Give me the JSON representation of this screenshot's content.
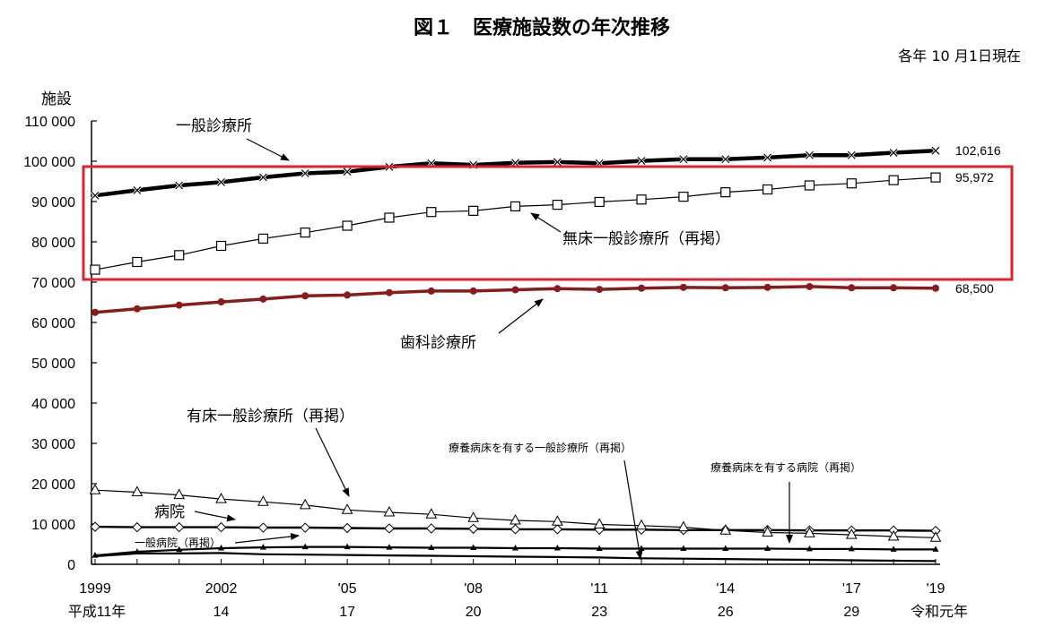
{
  "title": "図１　医療施設数の年次推移",
  "as_of": "各年 10 月1日現在",
  "colors": {
    "general_clinic": "#000000",
    "no_bed_clinic": "#000000",
    "dental_clinic": "#8b1a1a",
    "highlight_box": "#d9232e"
  },
  "chart_data": {
    "type": "line",
    "ylabel": "施設",
    "ylim": [
      0,
      110000
    ],
    "y_ticks": [
      "110 000",
      "100 000",
      "90 000",
      "80 000",
      "70 000",
      "60 000",
      "50 000",
      "40 000",
      "30 000",
      "20 000",
      "10 000",
      "0"
    ],
    "x": [
      1999,
      2000,
      2001,
      2002,
      2003,
      2004,
      2005,
      2006,
      2007,
      2008,
      2009,
      2010,
      2011,
      2012,
      2013,
      2014,
      2015,
      2016,
      2017,
      2018,
      2019
    ],
    "x_ticks": [
      {
        "year": 1999,
        "top": "1999",
        "bottom": "平成11年"
      },
      {
        "year": 2002,
        "top": "2002",
        "bottom": "14"
      },
      {
        "year": 2005,
        "top": "'05",
        "bottom": "17"
      },
      {
        "year": 2008,
        "top": "'08",
        "bottom": "20"
      },
      {
        "year": 2011,
        "top": "'11",
        "bottom": "23"
      },
      {
        "year": 2014,
        "top": "'14",
        "bottom": "26"
      },
      {
        "year": 2017,
        "top": "'17",
        "bottom": "29"
      },
      {
        "year": 2019,
        "top": "'19",
        "bottom": "令和元年"
      }
    ],
    "series": [
      {
        "name": "一般診療所",
        "marker": "x",
        "values": [
          91500,
          92800,
          94000,
          94800,
          96000,
          97000,
          97400,
          98600,
          99500,
          99100,
          99600,
          99800,
          99500,
          100100,
          100500,
          100500,
          100900,
          101500,
          101500,
          102100,
          102616
        ],
        "end_label": "102,616"
      },
      {
        "name": "無床一般診療所（再掲）",
        "marker": "square",
        "values": [
          73100,
          75000,
          76700,
          79000,
          80800,
          82300,
          84000,
          86000,
          87400,
          87700,
          88800,
          89200,
          89900,
          90500,
          91200,
          92300,
          93000,
          94000,
          94500,
          95300,
          95972
        ],
        "end_label": "95,972"
      },
      {
        "name": "歯科診療所",
        "marker": "circle",
        "values": [
          62500,
          63400,
          64300,
          65100,
          65800,
          66600,
          66800,
          67400,
          67800,
          67800,
          68100,
          68400,
          68200,
          68500,
          68700,
          68600,
          68700,
          68900,
          68600,
          68600,
          68500
        ],
        "end_label": "68,500"
      },
      {
        "name": "有床一般診療所（再掲）",
        "marker": "triangle",
        "values": [
          18400,
          17900,
          17200,
          16200,
          15500,
          14700,
          13500,
          12900,
          12400,
          11500,
          10900,
          10600,
          9900,
          9600,
          9200,
          8400,
          7900,
          7700,
          7300,
          6900,
          6600
        ]
      },
      {
        "name": "病院",
        "marker": "diamond",
        "values": [
          9300,
          9200,
          9200,
          9200,
          9100,
          9100,
          9000,
          8900,
          8900,
          8800,
          8700,
          8700,
          8600,
          8600,
          8500,
          8500,
          8500,
          8400,
          8400,
          8400,
          8300
        ]
      },
      {
        "name": "一般病院（再掲）",
        "marker": "triangle-filled",
        "values": [
          2200,
          3100,
          3600,
          4000,
          4200,
          4300,
          4300,
          4200,
          4100,
          4100,
          4000,
          4000,
          3900,
          3900,
          3900,
          3900,
          3900,
          3800,
          3800,
          3700,
          3700
        ]
      },
      {
        "name": "療養病床を有する一般診療所（再掲）",
        "marker": "none",
        "values": [
          2000,
          2700,
          2700,
          2800,
          2500,
          2400,
          2300,
          2200,
          2100,
          2000,
          1900,
          1800,
          1700,
          1500,
          1400,
          1300,
          1200,
          1100,
          1000,
          900,
          800
        ]
      }
    ],
    "annotations": [
      {
        "text": "一般診療所",
        "series": "一般診療所"
      },
      {
        "text": "無床一般診療所（再掲）",
        "series": "無床一般診療所（再掲）"
      },
      {
        "text": "歯科診療所",
        "series": "歯科診療所"
      },
      {
        "text": "有床一般診療所（再掲）",
        "series": "有床一般診療所（再掲）"
      },
      {
        "text": "病院",
        "series": "病院"
      },
      {
        "text": "一般病院（再掲）",
        "series": "一般病院（再掲）"
      },
      {
        "text": "療養病床を有する一般診療所（再掲）",
        "series": "療養病床を有する一般診療所（再掲）"
      },
      {
        "text": "療養病床を有する病院（再掲）",
        "series": "療養病床を有する病院（再掲）"
      }
    ],
    "grid": false
  }
}
